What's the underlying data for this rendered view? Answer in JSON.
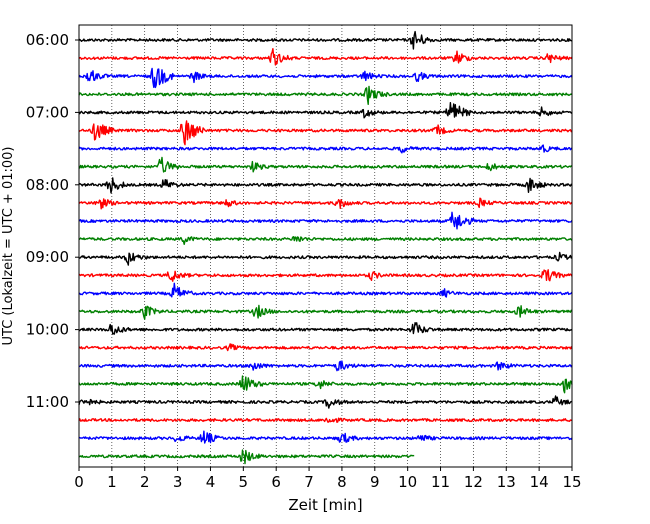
{
  "chart_data": {
    "type": "line",
    "title": "",
    "xlabel": "Zeit  [min]",
    "ylabel": "UTC (Lokalzeit = UTC + 01:00)",
    "xlim": [
      0,
      15
    ],
    "x_ticks": [
      0,
      1,
      2,
      3,
      4,
      5,
      6,
      7,
      8,
      9,
      10,
      11,
      12,
      13,
      14,
      15
    ],
    "y_tick_labels": [
      "06:00",
      "07:00",
      "08:00",
      "09:00",
      "10:00",
      "11:00"
    ],
    "grid": "vertical dotted at each minute",
    "legend": "none",
    "trace_colors": [
      "#000000",
      "#ff0000",
      "#0000ff",
      "#008000"
    ],
    "traces": [
      {
        "start": "06:00",
        "end_minute": 15,
        "color": "#000000",
        "events": [
          {
            "t": 10.2,
            "amp": 1.0
          }
        ]
      },
      {
        "start": "06:15",
        "end_minute": 15,
        "color": "#ff0000",
        "events": [
          {
            "t": 5.9,
            "amp": 0.9
          },
          {
            "t": 11.5,
            "amp": 0.7
          },
          {
            "t": 14.3,
            "amp": 0.5
          }
        ]
      },
      {
        "start": "06:30",
        "end_minute": 15,
        "color": "#0000ff",
        "events": [
          {
            "t": 0.3,
            "amp": 0.8
          },
          {
            "t": 2.3,
            "amp": 1.4
          },
          {
            "t": 3.5,
            "amp": 0.5
          },
          {
            "t": 8.7,
            "amp": 0.5
          },
          {
            "t": 10.3,
            "amp": 0.5
          }
        ]
      },
      {
        "start": "06:45",
        "end_minute": 15,
        "color": "#008000",
        "events": [
          {
            "t": 8.8,
            "amp": 0.9
          }
        ]
      },
      {
        "start": "07:00",
        "end_minute": 15,
        "color": "#000000",
        "events": [
          {
            "t": 8.7,
            "amp": 0.5
          },
          {
            "t": 11.3,
            "amp": 1.3
          },
          {
            "t": 14.1,
            "amp": 0.5
          }
        ]
      },
      {
        "start": "07:15",
        "end_minute": 15,
        "color": "#ff0000",
        "events": [
          {
            "t": 0.5,
            "amp": 1.1
          },
          {
            "t": 3.2,
            "amp": 1.5
          },
          {
            "t": 10.9,
            "amp": 0.5
          }
        ]
      },
      {
        "start": "07:30",
        "end_minute": 15,
        "color": "#0000ff",
        "events": [
          {
            "t": 9.8,
            "amp": 0.4
          },
          {
            "t": 14.1,
            "amp": 0.4
          }
        ]
      },
      {
        "start": "07:45",
        "end_minute": 15,
        "color": "#008000",
        "events": [
          {
            "t": 2.5,
            "amp": 0.9
          },
          {
            "t": 5.3,
            "amp": 0.5
          },
          {
            "t": 12.5,
            "amp": 0.4
          }
        ]
      },
      {
        "start": "08:00",
        "end_minute": 15,
        "color": "#000000",
        "events": [
          {
            "t": 0.95,
            "amp": 0.9
          },
          {
            "t": 2.6,
            "amp": 0.6
          },
          {
            "t": 13.7,
            "amp": 0.8
          }
        ]
      },
      {
        "start": "08:15",
        "end_minute": 15,
        "color": "#ff0000",
        "events": [
          {
            "t": 0.6,
            "amp": 0.7
          },
          {
            "t": 4.5,
            "amp": 0.4
          },
          {
            "t": 7.9,
            "amp": 0.6
          },
          {
            "t": 12.2,
            "amp": 0.4
          }
        ]
      },
      {
        "start": "08:30",
        "end_minute": 15,
        "color": "#0000ff",
        "events": [
          {
            "t": 11.4,
            "amp": 1.2
          }
        ]
      },
      {
        "start": "08:45",
        "end_minute": 15,
        "color": "#008000",
        "events": [
          {
            "t": 3.2,
            "amp": 0.4
          },
          {
            "t": 6.6,
            "amp": 0.4
          }
        ]
      },
      {
        "start": "09:00",
        "end_minute": 15,
        "color": "#000000",
        "events": [
          {
            "t": 1.5,
            "amp": 0.7
          },
          {
            "t": 14.6,
            "amp": 0.4
          }
        ]
      },
      {
        "start": "09:15",
        "end_minute": 15,
        "color": "#ff0000",
        "events": [
          {
            "t": 2.8,
            "amp": 0.7
          },
          {
            "t": 8.9,
            "amp": 0.4
          },
          {
            "t": 14.2,
            "amp": 0.8
          }
        ]
      },
      {
        "start": "09:30",
        "end_minute": 15,
        "color": "#0000ff",
        "events": [
          {
            "t": 2.9,
            "amp": 0.9
          },
          {
            "t": 11.1,
            "amp": 0.4
          }
        ]
      },
      {
        "start": "09:45",
        "end_minute": 15,
        "color": "#008000",
        "events": [
          {
            "t": 2.0,
            "amp": 0.7
          },
          {
            "t": 5.4,
            "amp": 0.7
          },
          {
            "t": 13.4,
            "amp": 0.6
          }
        ]
      },
      {
        "start": "10:00",
        "end_minute": 15,
        "color": "#000000",
        "events": [
          {
            "t": 1.0,
            "amp": 0.7
          },
          {
            "t": 10.2,
            "amp": 0.8
          }
        ]
      },
      {
        "start": "10:15",
        "end_minute": 15,
        "color": "#ff0000",
        "events": [
          {
            "t": 4.6,
            "amp": 0.3
          }
        ]
      },
      {
        "start": "10:30",
        "end_minute": 15,
        "color": "#0000ff",
        "events": [
          {
            "t": 5.3,
            "amp": 0.5
          },
          {
            "t": 7.9,
            "amp": 0.6
          },
          {
            "t": 12.8,
            "amp": 0.5
          }
        ]
      },
      {
        "start": "10:45",
        "end_minute": 15,
        "color": "#008000",
        "events": [
          {
            "t": 5.0,
            "amp": 1.0
          },
          {
            "t": 7.3,
            "amp": 0.5
          },
          {
            "t": 14.8,
            "amp": 1.1
          }
        ]
      },
      {
        "start": "11:00",
        "end_minute": 15,
        "color": "#000000",
        "events": [
          {
            "t": 0.1,
            "amp": 0.6
          },
          {
            "t": 7.6,
            "amp": 0.6
          },
          {
            "t": 14.5,
            "amp": 0.5
          }
        ]
      },
      {
        "start": "11:15",
        "end_minute": 15,
        "color": "#ff0000",
        "events": [
          {
            "t": 7.6,
            "amp": 0.4
          }
        ]
      },
      {
        "start": "11:30",
        "end_minute": 15,
        "color": "#0000ff",
        "events": [
          {
            "t": 3.0,
            "amp": 0.4
          },
          {
            "t": 3.8,
            "amp": 0.8
          },
          {
            "t": 8.0,
            "amp": 0.6
          },
          {
            "t": 10.4,
            "amp": 0.4
          }
        ]
      },
      {
        "start": "11:45",
        "end_minute": 10.2,
        "color": "#008000",
        "events": [
          {
            "t": 5.0,
            "amp": 0.8
          }
        ]
      }
    ]
  }
}
